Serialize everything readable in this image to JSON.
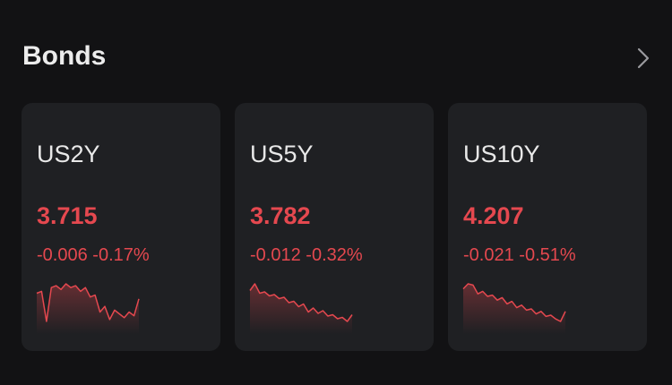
{
  "header": {
    "title": "Bonds"
  },
  "cards": [
    {
      "symbol": "US2Y",
      "price": "3.715",
      "change": "-0.006",
      "change_percent": "-0.17%",
      "sparkline": [
        3.718,
        3.719,
        3.703,
        3.721,
        3.722,
        3.72,
        3.723,
        3.721,
        3.722,
        3.719,
        3.721,
        3.716,
        3.717,
        3.708,
        3.711,
        3.704,
        3.709,
        3.707,
        3.705,
        3.708,
        3.706,
        3.715
      ]
    },
    {
      "symbol": "US5Y",
      "price": "3.782",
      "change": "-0.012",
      "change_percent": "-0.32%",
      "sparkline": [
        3.8,
        3.805,
        3.798,
        3.799,
        3.796,
        3.797,
        3.794,
        3.795,
        3.791,
        3.792,
        3.788,
        3.79,
        3.784,
        3.787,
        3.783,
        3.785,
        3.781,
        3.782,
        3.779,
        3.78,
        3.777,
        3.782
      ]
    },
    {
      "symbol": "US10Y",
      "price": "4.207",
      "change": "-0.021",
      "change_percent": "-0.51%",
      "sparkline": [
        4.225,
        4.229,
        4.228,
        4.221,
        4.223,
        4.219,
        4.22,
        4.216,
        4.218,
        4.213,
        4.215,
        4.21,
        4.212,
        4.208,
        4.209,
        4.205,
        4.207,
        4.203,
        4.204,
        4.201,
        4.199,
        4.207
      ]
    }
  ]
}
